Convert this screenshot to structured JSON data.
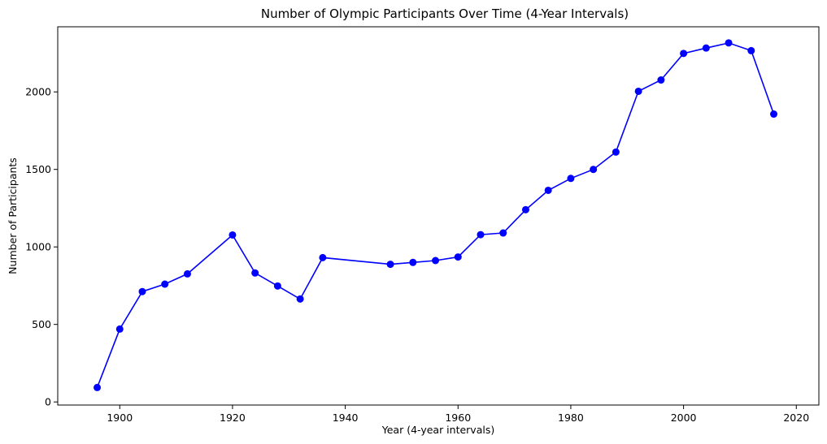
{
  "chart_data": {
    "type": "line",
    "title": "Number of Olympic Participants Over Time (4-Year Intervals)",
    "xlabel": "Year (4-year intervals)",
    "ylabel": "Number of Participants",
    "xlim": [
      1889,
      2024
    ],
    "ylim": [
      -20,
      2420
    ],
    "xticks": [
      1900,
      1920,
      1940,
      1960,
      1980,
      2000,
      2020
    ],
    "yticks": [
      0,
      500,
      1000,
      1500,
      2000
    ],
    "grid": false,
    "color": "#0000ff",
    "marker": "circle",
    "series": [
      {
        "x": [
          1896,
          1900,
          1904,
          1908,
          1912,
          1920,
          1924,
          1928,
          1932,
          1936,
          1948,
          1952,
          1956,
          1960,
          1964,
          1968,
          1972,
          1976,
          1980,
          1984,
          1988,
          1992,
          1996,
          2000,
          2004,
          2008,
          2012,
          2016
        ],
        "values": [
          93,
          470,
          712,
          760,
          826,
          1077,
          832,
          748,
          664,
          931,
          888,
          900,
          912,
          935,
          1079,
          1090,
          1240,
          1365,
          1442,
          1500,
          1612,
          2004,
          2077,
          2248,
          2283,
          2316,
          2266,
          1857
        ]
      }
    ]
  }
}
